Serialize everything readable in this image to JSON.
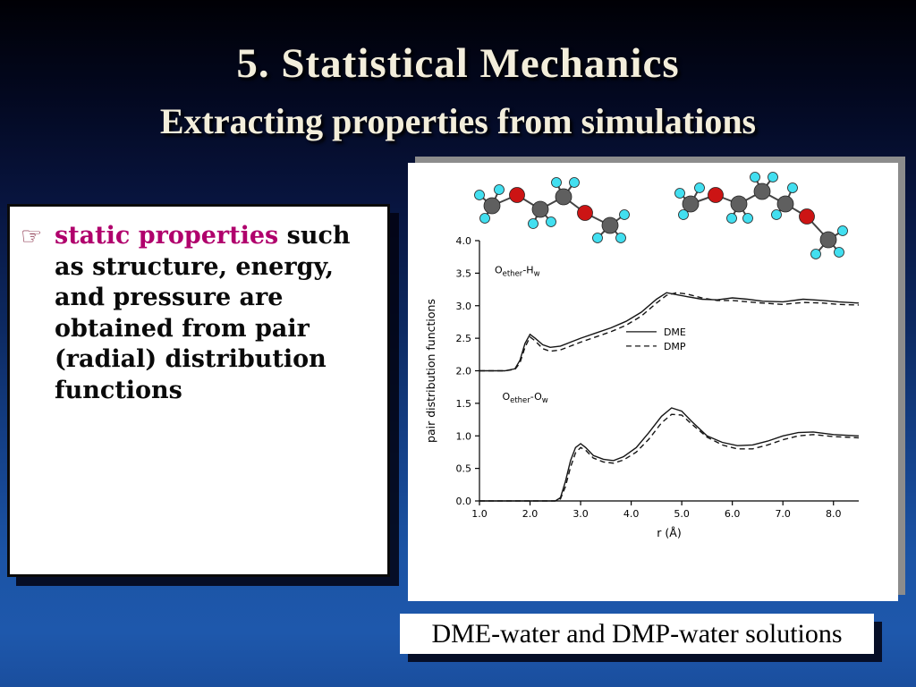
{
  "slide": {
    "title": "5. Statistical Mechanics",
    "subtitle": "Extracting properties from simulations"
  },
  "bullet": {
    "icon": "☞",
    "highlight": "static properties",
    "rest": " such as structure, energy, and pressure are obtained from pair (radial) distribution functions"
  },
  "caption": {
    "text": "DME-water and DMP-water solutions"
  },
  "colors": {
    "highlight_text": "#b0006c",
    "oxygen_atom": "#cc1414",
    "carbon_atom": "#5f5f5f",
    "hydrogen_atom": "#42dff0",
    "slide_bg_top": "#000005",
    "slide_bg_bottom": "#1e58ac"
  },
  "chart_data": {
    "type": "line",
    "title": "",
    "xlabel": "r (Å)",
    "ylabel": "pair distribution functions",
    "xlim": [
      1.0,
      8.5
    ],
    "ylim": [
      0.0,
      4.0
    ],
    "xticks": [
      1.0,
      2.0,
      3.0,
      4.0,
      5.0,
      6.0,
      7.0,
      8.0
    ],
    "yticks": [
      0.0,
      0.5,
      1.0,
      1.5,
      2.0,
      2.5,
      3.0,
      3.5,
      4.0
    ],
    "grid": false,
    "legend": {
      "position": {
        "x": 3.9,
        "y": 2.6
      },
      "entries": [
        {
          "label": "DME",
          "style": "solid"
        },
        {
          "label": "DMP",
          "style": "dashed"
        }
      ]
    },
    "annotations": [
      {
        "x": 1.3,
        "y": 3.5,
        "segments": [
          {
            "t": "O"
          },
          {
            "t": "ether",
            "sub": true
          },
          {
            "t": "-H"
          },
          {
            "t": "w",
            "sub": true
          }
        ]
      },
      {
        "x": 1.45,
        "y": 1.55,
        "segments": [
          {
            "t": "O"
          },
          {
            "t": "ether",
            "sub": true
          },
          {
            "t": "-O"
          },
          {
            "t": "w",
            "sub": true
          }
        ]
      }
    ],
    "note": "Upper pair (Oether-Hw) is offset by +2.0 on the y axis; lower pair (Oether-Ow) starts at 0.",
    "series": [
      {
        "name": "DME Oether-Hw",
        "group": "Oether-Hw",
        "label": "DME",
        "style": "solid",
        "x": [
          1.0,
          1.5,
          1.7,
          1.8,
          1.9,
          2.0,
          2.1,
          2.25,
          2.4,
          2.6,
          2.8,
          3.0,
          3.3,
          3.6,
          3.9,
          4.2,
          4.5,
          4.7,
          4.9,
          5.1,
          5.4,
          5.7,
          6.0,
          6.3,
          6.6,
          7.0,
          7.4,
          7.8,
          8.1,
          8.5
        ],
        "y": [
          2.0,
          2.0,
          2.03,
          2.16,
          2.42,
          2.56,
          2.5,
          2.4,
          2.36,
          2.38,
          2.44,
          2.5,
          2.58,
          2.66,
          2.76,
          2.9,
          3.1,
          3.2,
          3.17,
          3.14,
          3.1,
          3.09,
          3.12,
          3.1,
          3.07,
          3.06,
          3.1,
          3.08,
          3.06,
          3.04
        ]
      },
      {
        "name": "DMP Oether-Hw",
        "group": "Oether-Hw",
        "label": "DMP",
        "style": "dashed",
        "x": [
          1.0,
          1.5,
          1.7,
          1.8,
          1.9,
          2.0,
          2.1,
          2.25,
          2.4,
          2.6,
          2.8,
          3.0,
          3.3,
          3.6,
          3.9,
          4.2,
          4.5,
          4.7,
          4.9,
          5.1,
          5.4,
          5.7,
          6.0,
          6.3,
          6.6,
          7.0,
          7.4,
          7.8,
          8.1,
          8.5
        ],
        "y": [
          2.0,
          2.0,
          2.02,
          2.12,
          2.36,
          2.52,
          2.46,
          2.34,
          2.3,
          2.32,
          2.38,
          2.44,
          2.52,
          2.6,
          2.7,
          2.84,
          3.04,
          3.16,
          3.2,
          3.18,
          3.12,
          3.08,
          3.08,
          3.06,
          3.04,
          3.02,
          3.05,
          3.04,
          3.02,
          3.01
        ]
      },
      {
        "name": "DME Oether-Ow",
        "group": "Oether-Ow",
        "label": "DME",
        "style": "solid",
        "x": [
          1.0,
          2.0,
          2.5,
          2.6,
          2.7,
          2.8,
          2.9,
          3.0,
          3.1,
          3.25,
          3.45,
          3.65,
          3.85,
          4.1,
          4.35,
          4.6,
          4.8,
          5.0,
          5.2,
          5.5,
          5.8,
          6.1,
          6.4,
          6.7,
          7.0,
          7.3,
          7.6,
          8.0,
          8.5
        ],
        "y": [
          0.0,
          0.0,
          0.0,
          0.05,
          0.3,
          0.62,
          0.82,
          0.88,
          0.82,
          0.7,
          0.64,
          0.62,
          0.68,
          0.82,
          1.05,
          1.3,
          1.43,
          1.38,
          1.22,
          1.0,
          0.9,
          0.85,
          0.86,
          0.92,
          1.0,
          1.05,
          1.06,
          1.02,
          1.0
        ]
      },
      {
        "name": "DMP Oether-Ow",
        "group": "Oether-Ow",
        "label": "DMP",
        "style": "dashed",
        "x": [
          1.0,
          2.0,
          2.5,
          2.6,
          2.7,
          2.8,
          2.9,
          3.0,
          3.1,
          3.25,
          3.45,
          3.65,
          3.85,
          4.1,
          4.35,
          4.6,
          4.8,
          5.0,
          5.2,
          5.5,
          5.8,
          6.1,
          6.4,
          6.7,
          7.0,
          7.3,
          7.6,
          8.0,
          8.5
        ],
        "y": [
          0.0,
          0.0,
          0.0,
          0.03,
          0.22,
          0.52,
          0.74,
          0.82,
          0.78,
          0.66,
          0.6,
          0.58,
          0.63,
          0.75,
          0.95,
          1.2,
          1.33,
          1.32,
          1.18,
          0.98,
          0.86,
          0.8,
          0.8,
          0.86,
          0.94,
          1.0,
          1.02,
          0.99,
          0.97
        ]
      }
    ]
  }
}
